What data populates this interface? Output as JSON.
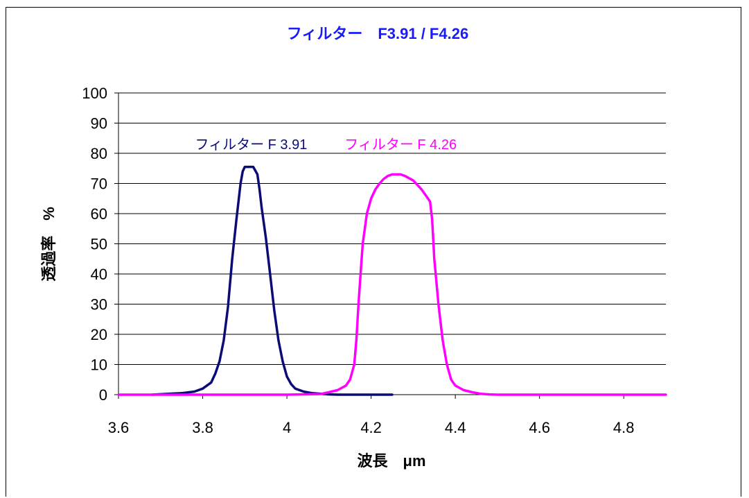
{
  "chart_data": {
    "type": "line",
    "title": "フィルター　F3.91 / F4.26",
    "xlabel": "波長　μm",
    "ylabel": "透過率　%",
    "xlim": [
      3.6,
      4.9
    ],
    "ylim": [
      0,
      100
    ],
    "x_ticks": [
      3.6,
      3.8,
      4.0,
      4.2,
      4.4,
      4.6,
      4.8
    ],
    "x_tick_labels": [
      "3.6",
      "3.8",
      "4",
      "4.2",
      "4.4",
      "4.6",
      "4.8"
    ],
    "y_ticks": [
      0,
      10,
      20,
      30,
      40,
      50,
      60,
      70,
      80,
      90,
      100
    ],
    "y_tick_labels": [
      "0",
      "10",
      "20",
      "30",
      "40",
      "50",
      "60",
      "70",
      "80",
      "90",
      "100"
    ],
    "grid": "horizontal",
    "colors": {
      "title": "#1a1aff",
      "series1": "#0b0b78",
      "series2": "#ff00ff",
      "grid": "#000000"
    },
    "series": [
      {
        "name": "フィルター F 3.91",
        "color": "#0b0b78",
        "x": [
          3.68,
          3.75,
          3.78,
          3.8,
          3.82,
          3.83,
          3.84,
          3.85,
          3.86,
          3.87,
          3.88,
          3.89,
          3.895,
          3.9,
          3.91,
          3.915,
          3.92,
          3.93,
          3.935,
          3.94,
          3.95,
          3.96,
          3.97,
          3.98,
          3.99,
          4.0,
          4.01,
          4.02,
          4.04,
          4.06,
          4.08,
          4.1,
          4.12,
          4.15,
          4.2,
          4.25
        ],
        "y": [
          0,
          0.5,
          1,
          2,
          4,
          7,
          11,
          18,
          29,
          45,
          58,
          70,
          74,
          75.5,
          75.5,
          75.5,
          75.5,
          73,
          68,
          62,
          52,
          40,
          28,
          18,
          11,
          6,
          3.5,
          2,
          1,
          0.5,
          0.3,
          0.1,
          0,
          0,
          0,
          0
        ]
      },
      {
        "name": "フィルター F 4.26",
        "color": "#ff00ff",
        "x": [
          3.6,
          4.0,
          4.08,
          4.1,
          4.12,
          4.14,
          4.15,
          4.16,
          4.165,
          4.17,
          4.175,
          4.18,
          4.19,
          4.2,
          4.21,
          4.22,
          4.23,
          4.24,
          4.25,
          4.26,
          4.27,
          4.28,
          4.3,
          4.32,
          4.33,
          4.34,
          4.345,
          4.35,
          4.36,
          4.37,
          4.38,
          4.39,
          4.4,
          4.42,
          4.44,
          4.46,
          4.48,
          4.5,
          4.6,
          4.9
        ],
        "y": [
          0,
          0,
          0.2,
          0.8,
          1.5,
          3,
          5,
          10,
          18,
          30,
          40,
          50,
          60,
          65,
          68,
          70,
          71.5,
          72.5,
          73,
          73,
          73,
          72.5,
          71,
          68,
          66,
          64,
          58,
          45,
          30,
          18,
          10,
          5,
          3,
          1.5,
          0.8,
          0.3,
          0.1,
          0,
          0,
          0
        ]
      }
    ],
    "annotations": [
      {
        "text": "フィルター F 3.91",
        "series": 0,
        "x": 3.915,
        "y": 83
      },
      {
        "text": "フィルター F 4.26",
        "series": 1,
        "x": 4.27,
        "y": 83
      }
    ]
  }
}
